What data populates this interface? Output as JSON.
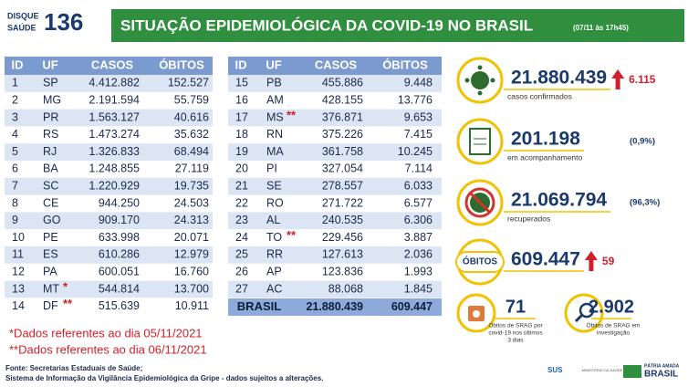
{
  "header": {
    "logo": {
      "line1": "DISQUE",
      "line2": "SAÚDE",
      "number": "136"
    },
    "title": "SITUAÇÃO EPIDEMIOLÓGICA DA COVID-19 NO BRASIL",
    "timestamp": "(07/11 às 17h45)"
  },
  "tables": [
    {
      "columns": [
        "ID",
        "UF",
        "CASOS",
        "ÓBITOS"
      ],
      "rows": [
        {
          "id": "1",
          "uf": "SP",
          "cases": "4.412.882",
          "deaths": "152.527"
        },
        {
          "id": "2",
          "uf": "MG",
          "cases": "2.191.594",
          "deaths": "55.759"
        },
        {
          "id": "3",
          "uf": "PR",
          "cases": "1.563.127",
          "deaths": "40.616"
        },
        {
          "id": "4",
          "uf": "RS",
          "cases": "1.473.274",
          "deaths": "35.632"
        },
        {
          "id": "5",
          "uf": "RJ",
          "cases": "1.326.833",
          "deaths": "68.494"
        },
        {
          "id": "6",
          "uf": "BA",
          "cases": "1.248.855",
          "deaths": "27.119"
        },
        {
          "id": "7",
          "uf": "SC",
          "cases": "1.220.929",
          "deaths": "19.735"
        },
        {
          "id": "8",
          "uf": "CE",
          "cases": "944.250",
          "deaths": "24.503"
        },
        {
          "id": "9",
          "uf": "GO",
          "cases": "909.170",
          "deaths": "24.313"
        },
        {
          "id": "10",
          "uf": "PE",
          "cases": "633.998",
          "deaths": "20.071"
        },
        {
          "id": "11",
          "uf": "ES",
          "cases": "610.286",
          "deaths": "12.979"
        },
        {
          "id": "12",
          "uf": "PA",
          "cases": "600.051",
          "deaths": "16.760"
        },
        {
          "id": "13",
          "uf": "MT",
          "note": "*",
          "cases": "544.814",
          "deaths": "13.700"
        },
        {
          "id": "14",
          "uf": "DF",
          "note": "**",
          "cases": "515.639",
          "deaths": "10.911"
        }
      ]
    },
    {
      "columns": [
        "ID",
        "UF",
        "CASOS",
        "ÓBITOS"
      ],
      "rows": [
        {
          "id": "15",
          "uf": "PB",
          "cases": "455.886",
          "deaths": "9.448"
        },
        {
          "id": "16",
          "uf": "AM",
          "cases": "428.155",
          "deaths": "13.776"
        },
        {
          "id": "17",
          "uf": "MS",
          "note": "**",
          "cases": "376.871",
          "deaths": "9.653"
        },
        {
          "id": "18",
          "uf": "RN",
          "cases": "375.226",
          "deaths": "7.415"
        },
        {
          "id": "19",
          "uf": "MA",
          "cases": "361.758",
          "deaths": "10.245"
        },
        {
          "id": "20",
          "uf": "PI",
          "cases": "327.054",
          "deaths": "7.114"
        },
        {
          "id": "21",
          "uf": "SE",
          "cases": "278.557",
          "deaths": "6.033"
        },
        {
          "id": "22",
          "uf": "RO",
          "cases": "271.722",
          "deaths": "6.577"
        },
        {
          "id": "23",
          "uf": "AL",
          "cases": "240.535",
          "deaths": "6.306"
        },
        {
          "id": "24",
          "uf": "TO",
          "note": "**",
          "cases": "229.456",
          "deaths": "3.887"
        },
        {
          "id": "25",
          "uf": "RR",
          "cases": "127.613",
          "deaths": "2.036"
        },
        {
          "id": "26",
          "uf": "AP",
          "cases": "123.836",
          "deaths": "1.993"
        },
        {
          "id": "27",
          "uf": "AC",
          "cases": "88.068",
          "deaths": "1.845"
        }
      ],
      "total": {
        "label": "BRASIL",
        "cases": "21.880.439",
        "deaths": "609.447"
      }
    }
  ],
  "stats": [
    {
      "value": "21.880.439",
      "label": "casos confirmados",
      "increase": "6.115"
    },
    {
      "value": "201.198",
      "label": "em acompanhamento",
      "share": "(0,9%)"
    },
    {
      "value": "21.069.794",
      "label": "recuperados",
      "share": "(96,3%)"
    },
    {
      "badge": "ÓBITOS",
      "value": "609.447",
      "increase": "59"
    }
  ],
  "srag": [
    {
      "value": "71",
      "label": [
        "Óbitos de SRAG por",
        "covid-19 nos últimos",
        "3 dias"
      ]
    },
    {
      "value": "2.902",
      "label": [
        "Óbitos de SRAG em",
        "investigação"
      ]
    }
  ],
  "notes": [
    "*Dados referentes ao dia 05/11/2021",
    "**Dados referentes ao dia 06/11/2021"
  ],
  "source": [
    "Fonte: Secretarias Estaduais de Saúde;",
    "Sistema de Informação da Vigilância Epidemiológica da Gripe - dados sujeitos a alterações."
  ],
  "footer": {
    "sus": "SUS",
    "ministry": "MINISTÉRIO DA SAÚDE",
    "motto": "PÁTRIA AMADA",
    "country": "BRASIL"
  }
}
